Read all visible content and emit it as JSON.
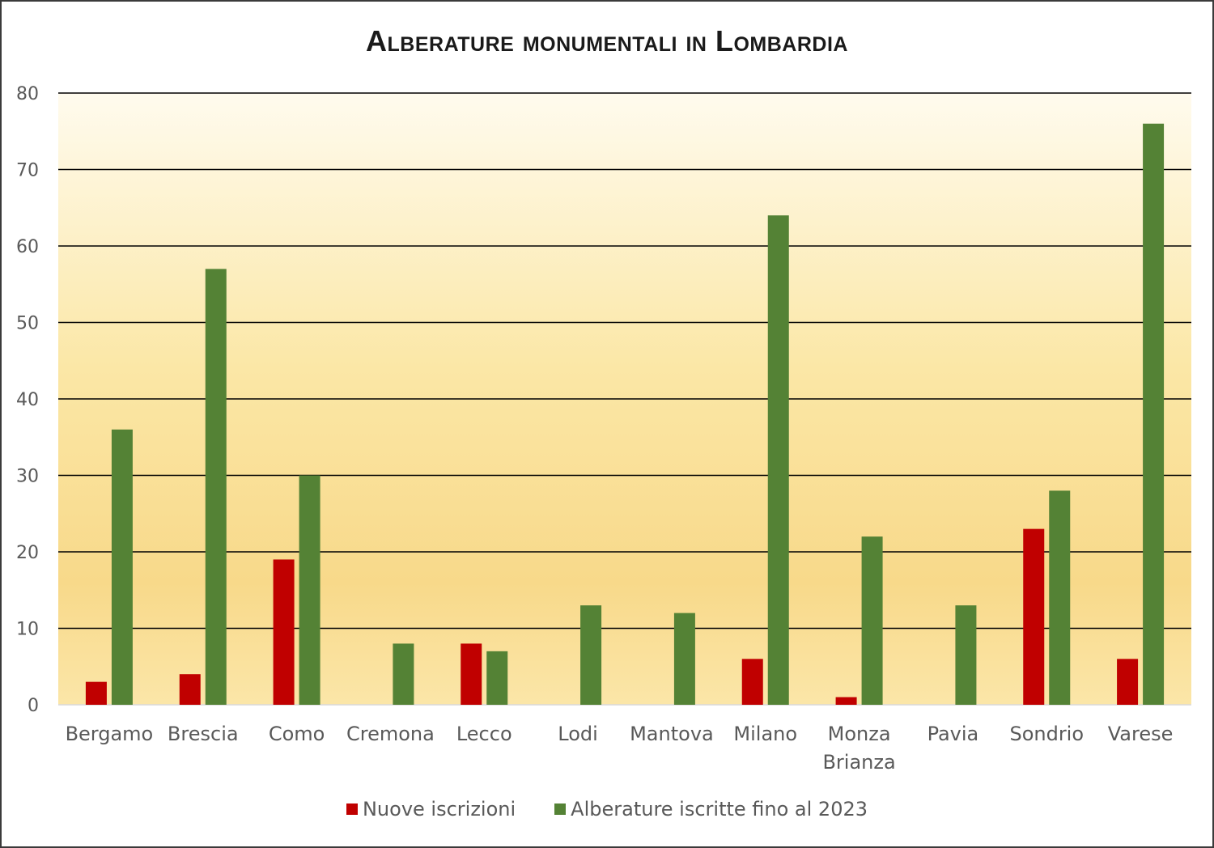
{
  "chart_data": {
    "type": "bar",
    "title": "Alberature monumentali in Lombardia",
    "categories": [
      "Bergamo",
      "Brescia",
      "Como",
      "Cremona",
      "Lecco",
      "Lodi",
      "Mantova",
      "Milano",
      "Monza Brianza",
      "Pavia",
      "Sondrio",
      "Varese"
    ],
    "category_lines": [
      [
        "Bergamo"
      ],
      [
        "Brescia"
      ],
      [
        "Como"
      ],
      [
        "Cremona"
      ],
      [
        "Lecco"
      ],
      [
        "Lodi"
      ],
      [
        "Mantova"
      ],
      [
        "Milano"
      ],
      [
        "Monza",
        "Brianza"
      ],
      [
        "Pavia"
      ],
      [
        "Sondrio"
      ],
      [
        "Varese"
      ]
    ],
    "series": [
      {
        "name": "Nuove iscrizioni",
        "color": "#c00000",
        "values": [
          3,
          4,
          19,
          0,
          8,
          0,
          0,
          6,
          1,
          0,
          23,
          6
        ]
      },
      {
        "name": "Alberature iscritte fino al 2023",
        "color": "#548235",
        "values": [
          36,
          57,
          30,
          8,
          7,
          13,
          12,
          64,
          22,
          13,
          28,
          76
        ]
      }
    ],
    "ylim": [
      0,
      80
    ],
    "yticks": [
      0,
      10,
      20,
      30,
      40,
      50,
      60,
      70,
      80
    ],
    "xlabel": "",
    "ylabel": "",
    "grid": true,
    "legend_position": "bottom",
    "background": "gradient light-yellow to amber"
  }
}
